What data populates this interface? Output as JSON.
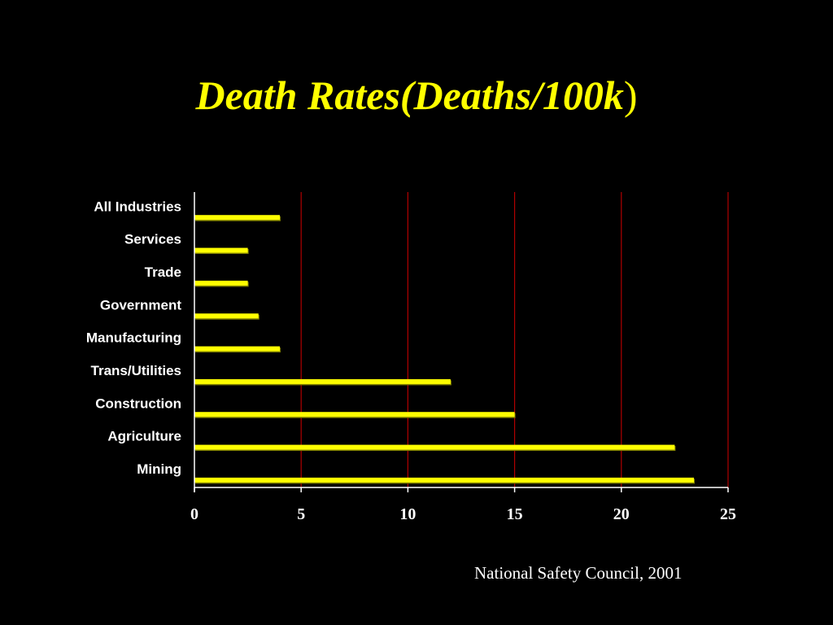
{
  "slide": {
    "title_main": "Death Rates(Deaths/100k",
    "title_close": ")",
    "source": "National Safety Council, 2001"
  },
  "colors": {
    "background": "#000000",
    "title": "#FFFF00",
    "bar_fill": "#FFFF00",
    "bar_shadow": "#7F7F00",
    "gridline": "#B00000",
    "axis": "#FFFFFF",
    "text": "#FFFFFF"
  },
  "chart_data": {
    "type": "bar",
    "orientation": "horizontal",
    "title": "Death Rates(Deaths/100k)",
    "xlabel": "",
    "ylabel": "",
    "categories": [
      "All Industries",
      "Services",
      "Trade",
      "Government",
      "Manufacturing",
      "Trans/Utilities",
      "Construction",
      "Agriculture",
      "Mining"
    ],
    "values": [
      4,
      2.5,
      2.5,
      3,
      4,
      12,
      15,
      22.5,
      23.4
    ],
    "xlim": [
      0,
      25
    ],
    "xticks": [
      "0",
      "5",
      "10",
      "15",
      "20",
      "25"
    ],
    "xtick_values": [
      0,
      5,
      10,
      15,
      20,
      25
    ],
    "grid": "vertical",
    "legend": "none"
  }
}
